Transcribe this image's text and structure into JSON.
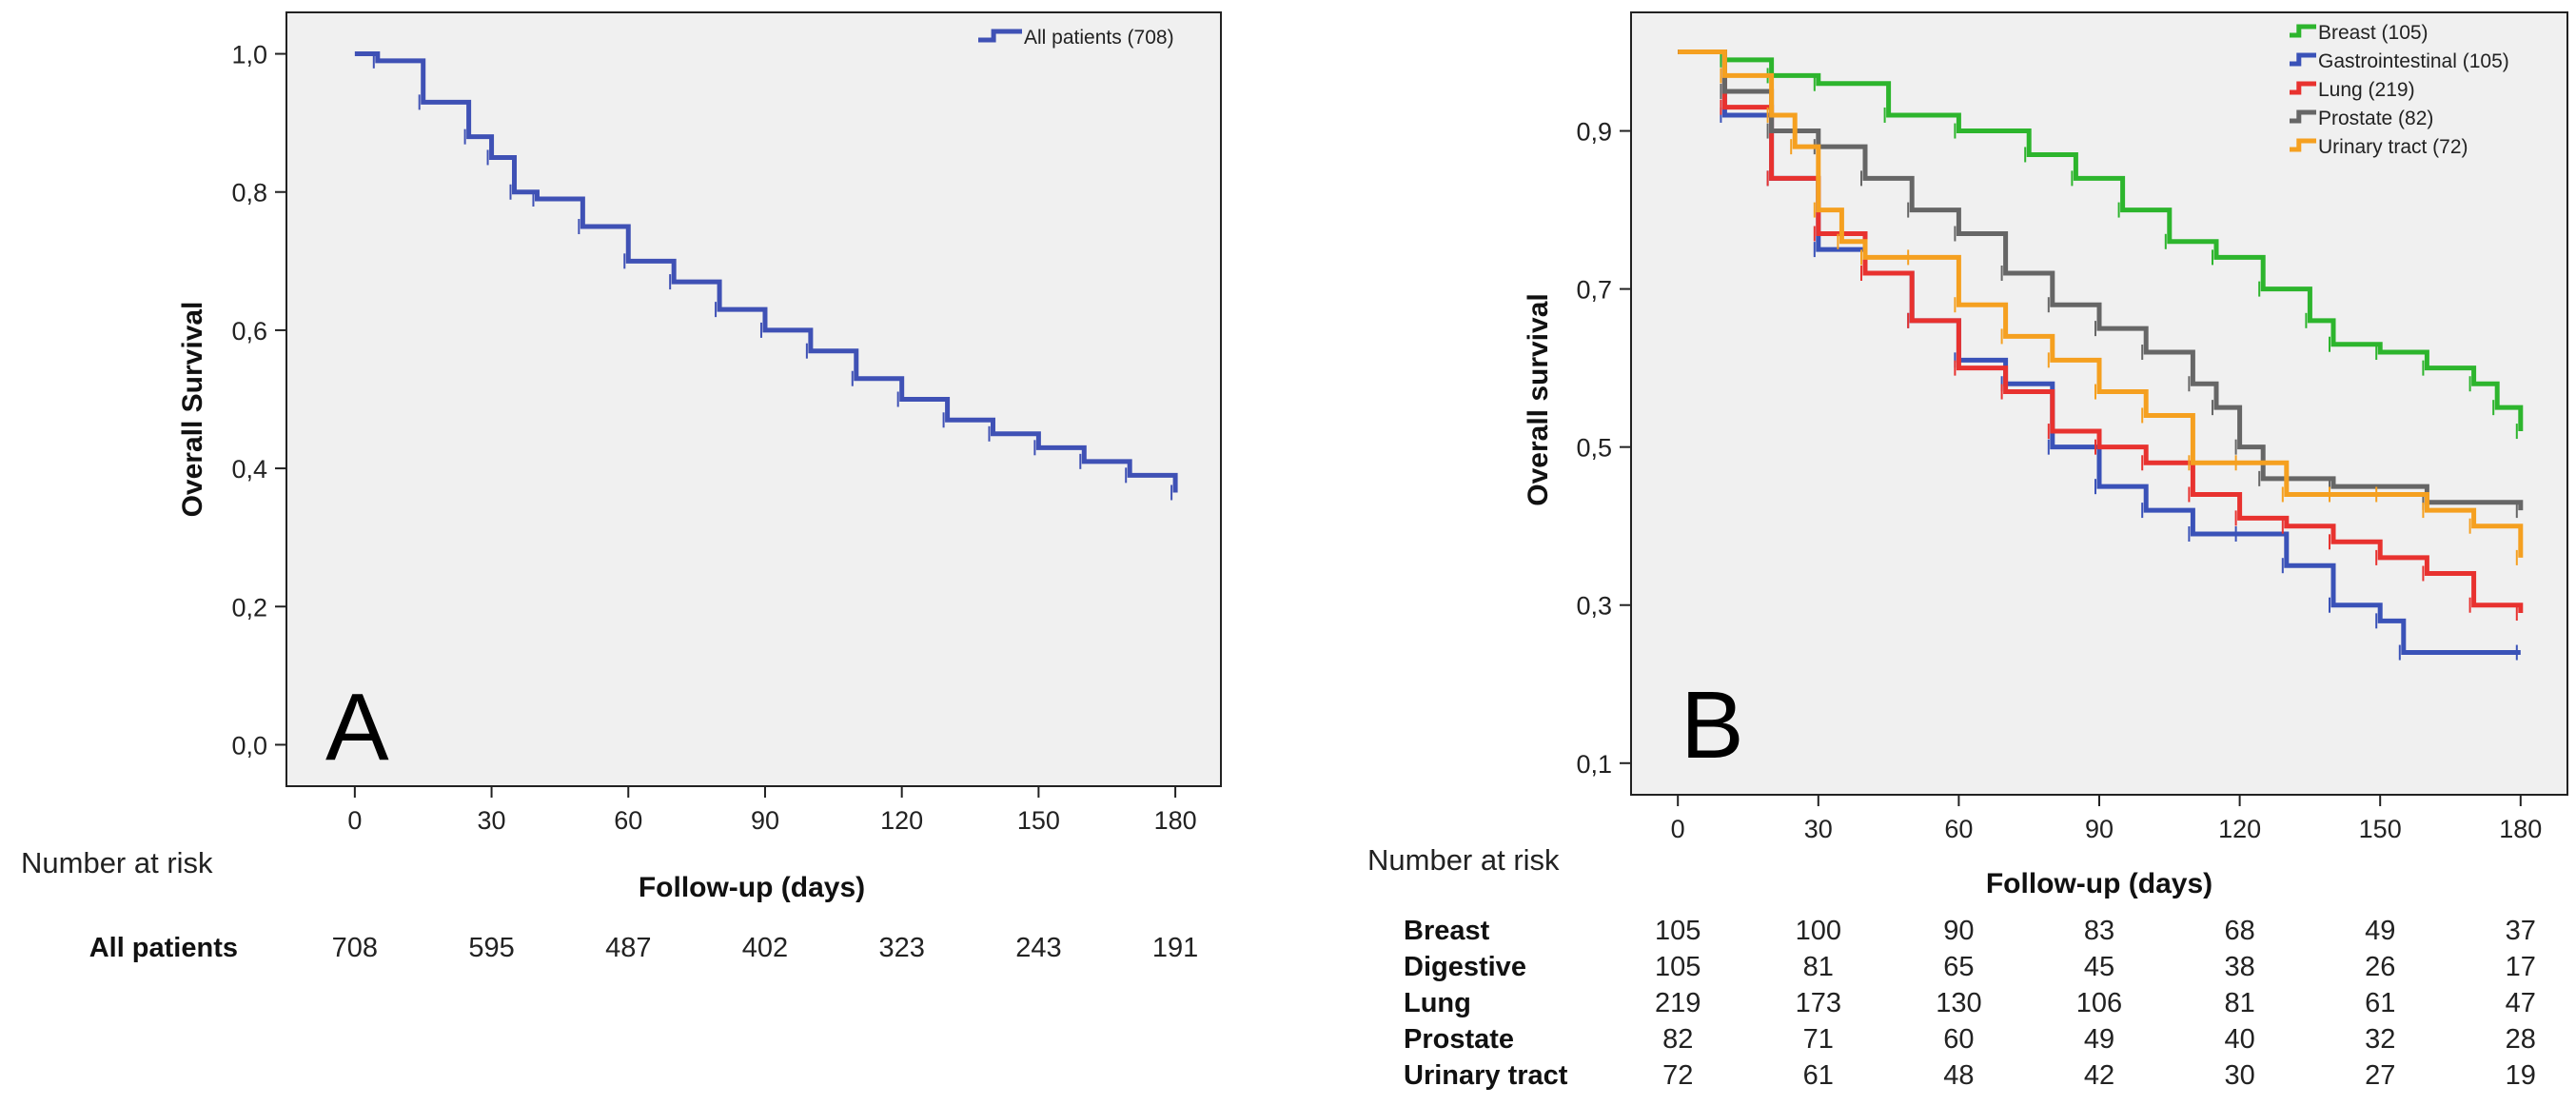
{
  "chart_data": [
    {
      "type": "line",
      "subtype": "kaplan-meier",
      "panel_label": "A",
      "xlabel": "Follow-up (days)",
      "ylabel": "Overall Survival",
      "xlim": [
        -15,
        190
      ],
      "ylim": [
        -0.06,
        1.06
      ],
      "xticks": [
        0,
        30,
        60,
        90,
        120,
        150,
        180
      ],
      "yticks": [
        "1,0",
        "0,8",
        "0,6",
        "0,4",
        "0,2",
        "0,0"
      ],
      "ytick_values": [
        1.0,
        0.8,
        0.6,
        0.4,
        0.2,
        0.0
      ],
      "legend_position": "top-right",
      "series": [
        {
          "name": "All patients (708)",
          "color": "#3f51b5",
          "x": [
            0,
            5,
            15,
            25,
            30,
            35,
            40,
            50,
            60,
            70,
            80,
            90,
            100,
            110,
            120,
            130,
            140,
            150,
            160,
            170,
            180
          ],
          "y": [
            1.0,
            0.99,
            0.93,
            0.88,
            0.85,
            0.8,
            0.79,
            0.75,
            0.7,
            0.67,
            0.63,
            0.6,
            0.57,
            0.53,
            0.5,
            0.47,
            0.45,
            0.43,
            0.41,
            0.39,
            0.365
          ]
        }
      ],
      "risk_table": {
        "header": "Number at risk",
        "rows": [
          {
            "label": "All patients",
            "values": [
              "708",
              "595",
              "487",
              "402",
              "323",
              "243",
              "191"
            ]
          }
        ]
      }
    },
    {
      "type": "line",
      "subtype": "kaplan-meier",
      "panel_label": "B",
      "xlabel": "Follow-up (days)",
      "ylabel": "Overall survival",
      "xlim": [
        -10,
        190
      ],
      "ylim": [
        0.06,
        1.05
      ],
      "xticks": [
        0,
        30,
        60,
        90,
        120,
        150,
        180
      ],
      "yticks": [
        "0,9",
        "0,7",
        "0,5",
        "0,3",
        "0,1"
      ],
      "ytick_values": [
        0.9,
        0.7,
        0.5,
        0.3,
        0.1
      ],
      "legend_position": "top-right",
      "series": [
        {
          "name": "Breast (105)",
          "color": "#2db52d",
          "x": [
            0,
            10,
            20,
            30,
            45,
            60,
            75,
            85,
            95,
            105,
            115,
            125,
            135,
            140,
            150,
            160,
            170,
            175,
            180
          ],
          "y": [
            1.0,
            0.99,
            0.97,
            0.96,
            0.92,
            0.9,
            0.87,
            0.84,
            0.8,
            0.76,
            0.74,
            0.7,
            0.66,
            0.63,
            0.62,
            0.6,
            0.58,
            0.55,
            0.52
          ]
        },
        {
          "name": "Gastrointestinal (105)",
          "color": "#3a52b8",
          "x": [
            0,
            10,
            20,
            30,
            40,
            50,
            60,
            70,
            80,
            90,
            100,
            110,
            120,
            130,
            140,
            150,
            155,
            180
          ],
          "y": [
            1.0,
            0.92,
            0.84,
            0.75,
            0.72,
            0.66,
            0.61,
            0.58,
            0.5,
            0.45,
            0.42,
            0.39,
            0.39,
            0.35,
            0.3,
            0.28,
            0.24,
            0.24
          ]
        },
        {
          "name": "Lung (219)",
          "color": "#e8322f",
          "x": [
            0,
            10,
            20,
            30,
            40,
            50,
            60,
            70,
            80,
            90,
            100,
            110,
            120,
            130,
            140,
            150,
            160,
            170,
            180
          ],
          "y": [
            1.0,
            0.93,
            0.84,
            0.77,
            0.72,
            0.66,
            0.6,
            0.57,
            0.52,
            0.5,
            0.48,
            0.44,
            0.41,
            0.4,
            0.38,
            0.36,
            0.34,
            0.3,
            0.29
          ]
        },
        {
          "name": "Prostate (82)",
          "color": "#666666",
          "x": [
            0,
            10,
            20,
            30,
            40,
            50,
            60,
            70,
            80,
            90,
            100,
            110,
            115,
            120,
            125,
            140,
            160,
            180
          ],
          "y": [
            1.0,
            0.95,
            0.9,
            0.88,
            0.84,
            0.8,
            0.77,
            0.72,
            0.68,
            0.65,
            0.62,
            0.58,
            0.55,
            0.5,
            0.46,
            0.45,
            0.43,
            0.42
          ]
        },
        {
          "name": "Urinary tract (72)",
          "color": "#f5a020",
          "x": [
            0,
            10,
            20,
            25,
            30,
            35,
            40,
            50,
            60,
            70,
            80,
            90,
            100,
            110,
            120,
            130,
            140,
            150,
            160,
            170,
            180
          ],
          "y": [
            1.0,
            0.97,
            0.92,
            0.88,
            0.8,
            0.76,
            0.74,
            0.74,
            0.68,
            0.64,
            0.61,
            0.57,
            0.54,
            0.48,
            0.48,
            0.44,
            0.44,
            0.44,
            0.42,
            0.4,
            0.36
          ]
        }
      ],
      "risk_table": {
        "header": "Number at risk",
        "rows": [
          {
            "label": "Breast",
            "values": [
              "105",
              "100",
              "90",
              "83",
              "68",
              "49",
              "37"
            ]
          },
          {
            "label": "Digestive",
            "values": [
              "105",
              "81",
              "65",
              "45",
              "38",
              "26",
              "17"
            ]
          },
          {
            "label": "Lung",
            "values": [
              "219",
              "173",
              "130",
              "106",
              "81",
              "61",
              "47"
            ]
          },
          {
            "label": "Prostate",
            "values": [
              "82",
              "71",
              "60",
              "49",
              "40",
              "32",
              "28"
            ]
          },
          {
            "label": "Urinary tract",
            "values": [
              "72",
              "61",
              "48",
              "42",
              "30",
              "27",
              "19"
            ]
          }
        ]
      }
    }
  ]
}
